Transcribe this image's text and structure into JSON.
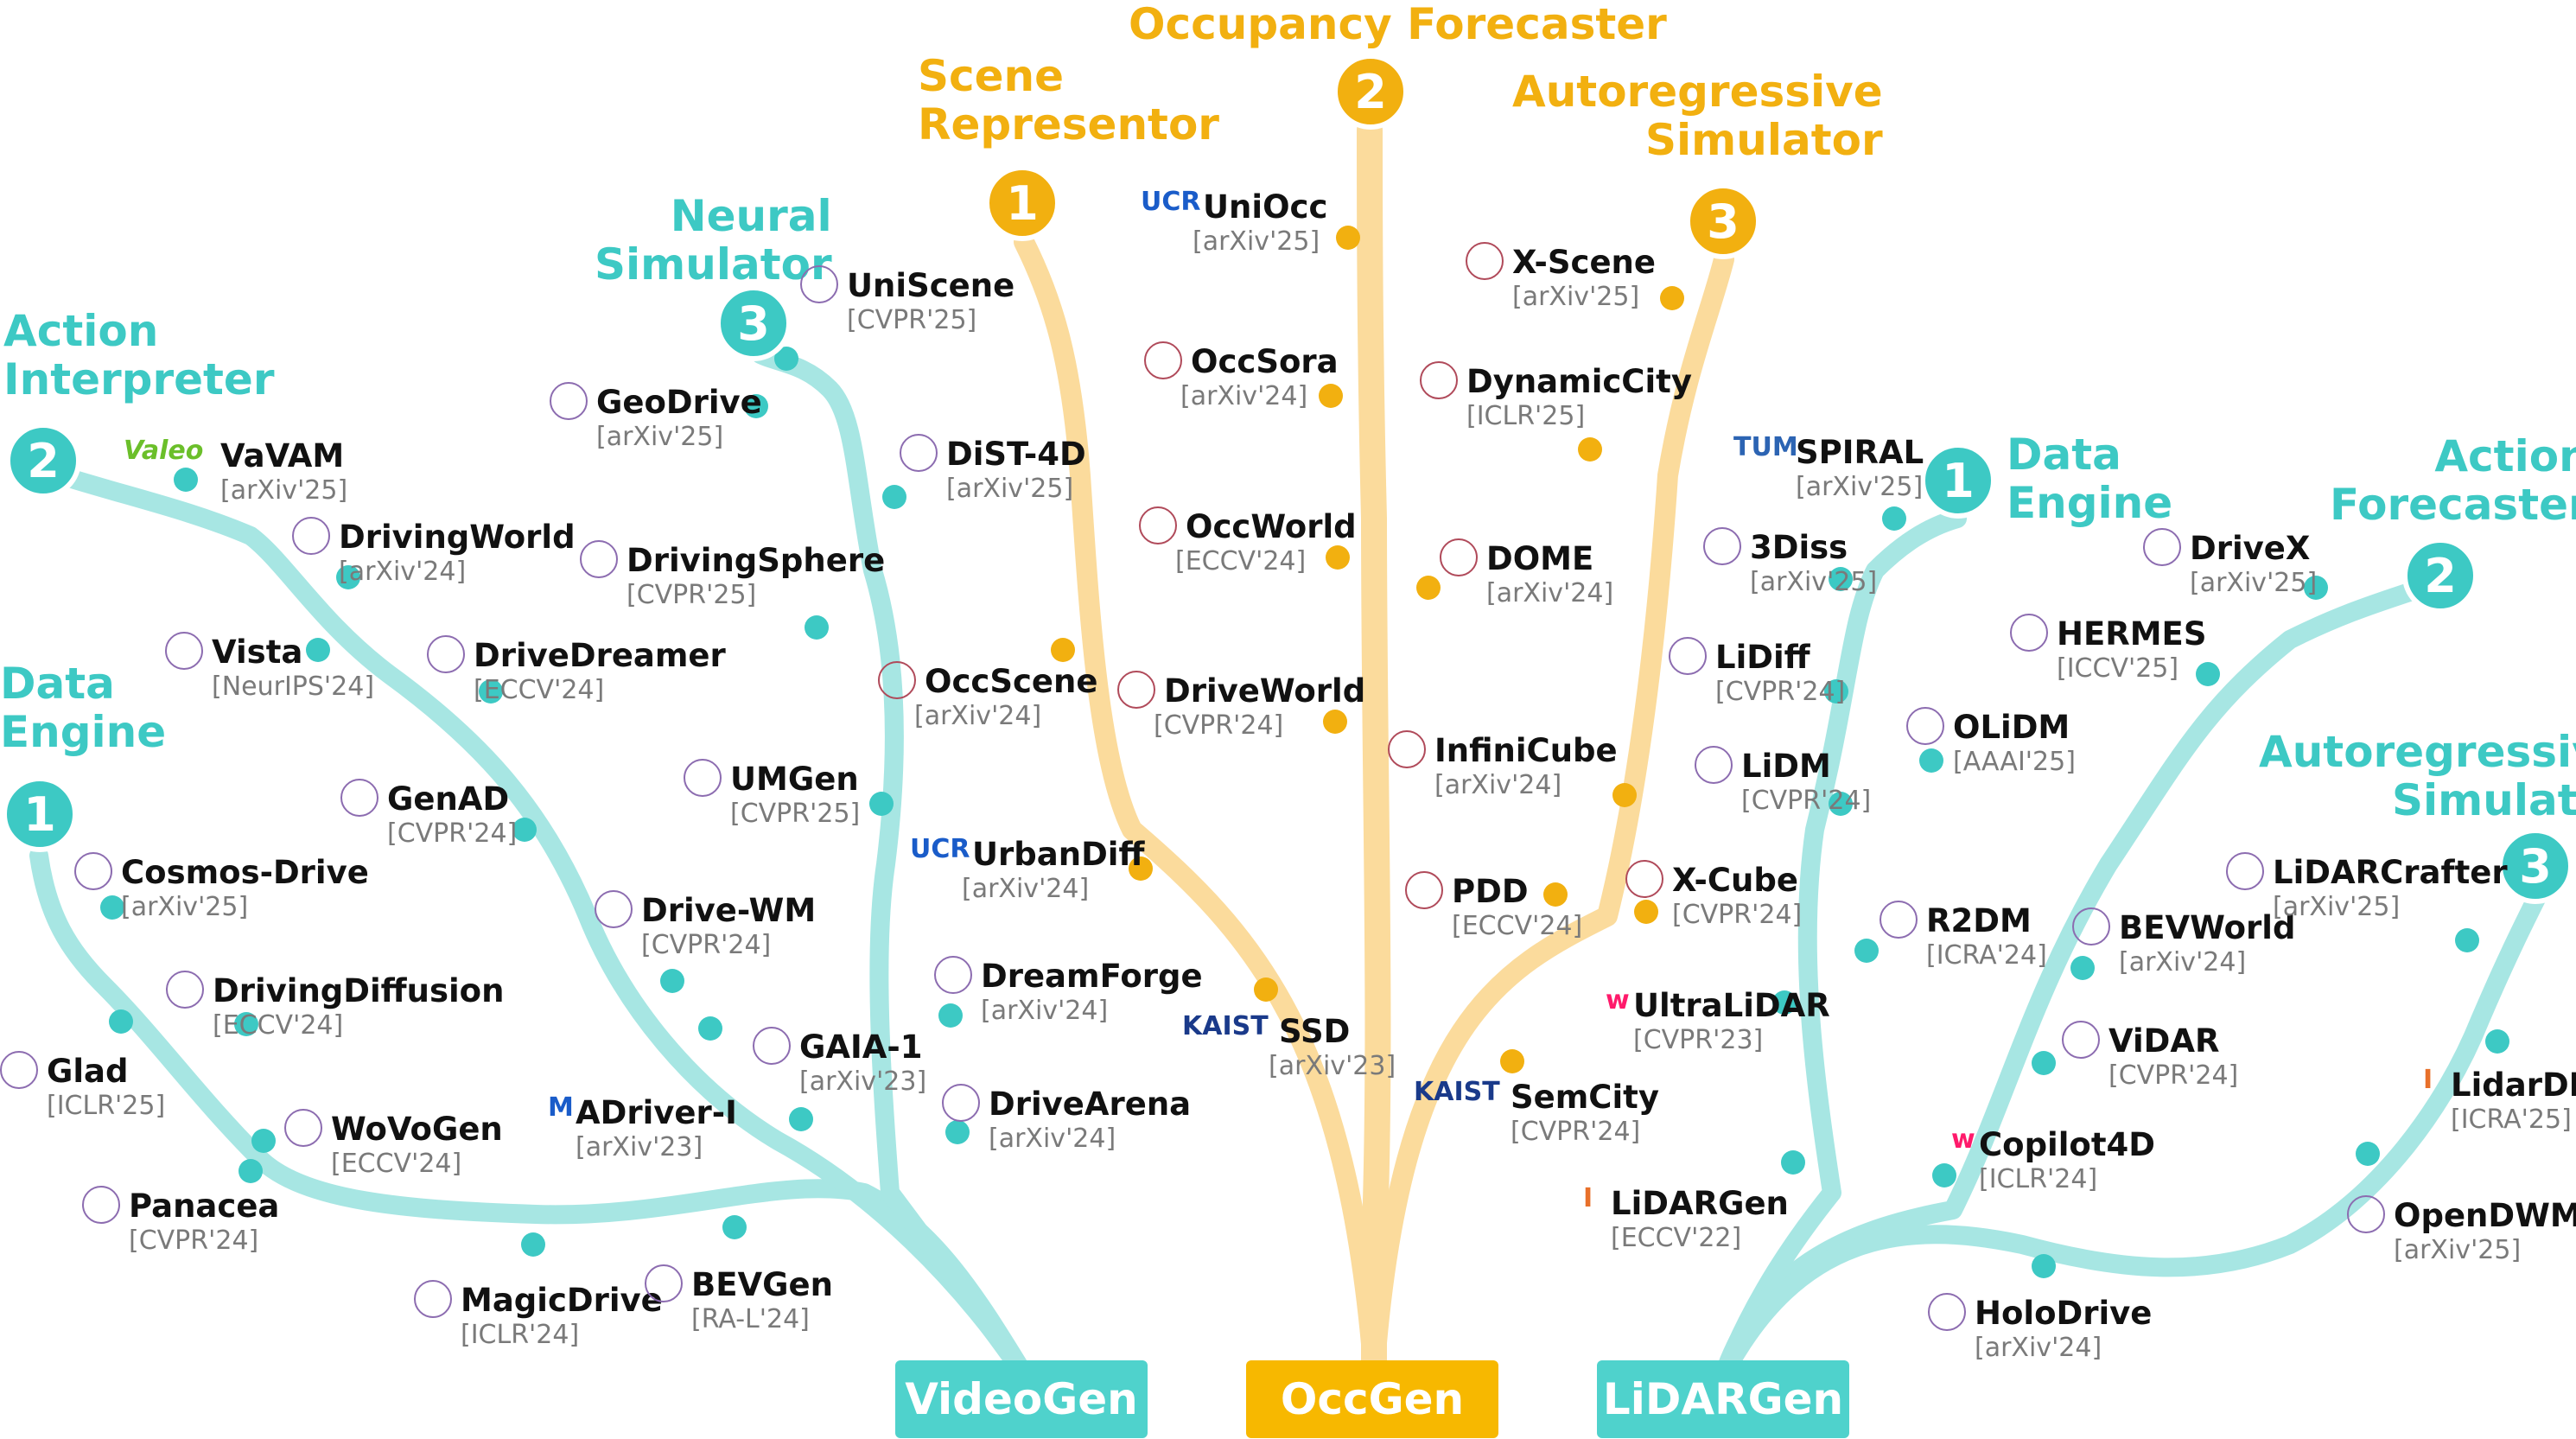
{
  "colors": {
    "teal": "#3dc9c4",
    "teal_branch": "#a7e6e3",
    "gold": "#f2b010",
    "gold_branch": "#fbdb9c"
  },
  "roots": [
    {
      "id": "videogen",
      "label": "VideoGen"
    },
    {
      "id": "occgen",
      "label": "OccGen"
    },
    {
      "id": "lidargen",
      "label": "LiDARGen"
    }
  ],
  "categories": {
    "video_data_engine": {
      "title_line1": "Data",
      "title_line2": "Engine",
      "badge": "1"
    },
    "video_action_interpreter": {
      "title_line1": "Action",
      "title_line2": "Interpreter",
      "badge": "2"
    },
    "video_neural_simulator": {
      "title_line1": "Neural",
      "title_line2": "Simulator",
      "badge": "3"
    },
    "occ_scene_representor": {
      "title_line1": "Scene",
      "title_line2": "Representor",
      "badge": "1"
    },
    "occ_forecaster": {
      "title_line1": "Occupancy Forecaster",
      "badge": "2"
    },
    "occ_autoregressive": {
      "title_line1": "Autoregressive",
      "title_line2": "Simulator",
      "badge": "3"
    },
    "lidar_data_engine": {
      "title_line1": "Data",
      "title_line2": "Engine",
      "badge": "1"
    },
    "lidar_action_forecaster": {
      "title_line1": "Action",
      "title_line2": "Forecaster",
      "badge": "2"
    },
    "lidar_autoregressive": {
      "title_line1": "Autoregressive",
      "title_line2": "Simulator",
      "badge": "3"
    }
  },
  "papers": [
    {
      "id": "cosmos-drive",
      "name": "Cosmos-Drive",
      "venue": "[arXiv'25]",
      "logo": "nvidia-logo"
    },
    {
      "id": "glad",
      "name": "Glad",
      "venue": "[ICLR'25]",
      "logo": "university-seal"
    },
    {
      "id": "drivingdiffusion",
      "name": "DrivingDiffusion",
      "venue": "[ECCV'24]",
      "logo": "baidu-logo"
    },
    {
      "id": "wovogen",
      "name": "WoVoGen",
      "venue": "[ECCV'24]",
      "logo": "university-seal"
    },
    {
      "id": "panacea",
      "name": "Panacea",
      "venue": "[CVPR'24]",
      "logo": "university-seal"
    },
    {
      "id": "magicdrive",
      "name": "MagicDrive",
      "venue": "[ICLR'24]",
      "logo": "university-crest"
    },
    {
      "id": "bevgen",
      "name": "BEVGen",
      "venue": "[RA-L'24]",
      "logo": "university-seal"
    },
    {
      "id": "vavam",
      "name": "VaVAM",
      "venue": "[arXiv'25]",
      "logo": "valeo-logo",
      "logo_text": "Valeo"
    },
    {
      "id": "drivingworld",
      "name": "DrivingWorld",
      "venue": "[arXiv'24]",
      "logo": "university-crest"
    },
    {
      "id": "vista",
      "name": "Vista",
      "venue": "[NeurIPS'24]",
      "logo": "opendrivelab-logo"
    },
    {
      "id": "drivedreamer",
      "name": "DriveDreamer",
      "venue": "[ECCV'24]",
      "logo": "gigaai-logo"
    },
    {
      "id": "genad",
      "name": "GenAD",
      "venue": "[CVPR'24]",
      "logo": "opendrivelab-logo"
    },
    {
      "id": "unisene",
      "name": "UniScene",
      "venue": "[CVPR'25]",
      "logo": "university-seal"
    },
    {
      "id": "geodrive",
      "name": "GeoDrive",
      "venue": "[arXiv'25]",
      "logo": "pku-logo"
    },
    {
      "id": "dist-4d",
      "name": "DiST-4D",
      "venue": "[arXiv'25]",
      "logo": "university-seal"
    },
    {
      "id": "drivingsphere",
      "name": "DrivingSphere",
      "venue": "[CVPR'25]",
      "logo": "university-crest"
    },
    {
      "id": "umgen",
      "name": "UMGen",
      "venue": "[CVPR'25]",
      "logo": "university-seal"
    },
    {
      "id": "drive-wm",
      "name": "Drive-WM",
      "venue": "[CVPR'24]",
      "logo": "casia-logo"
    },
    {
      "id": "adriver-i",
      "name": "ADriver-I",
      "venue": "[arXiv'23]",
      "logo": "megvii-logo",
      "logo_text": "M"
    },
    {
      "id": "gaia-1",
      "name": "GAIA-1",
      "venue": "[arXiv'23]",
      "logo": "wayve-logo"
    },
    {
      "id": "dreamforge",
      "name": "DreamForge",
      "venue": "[arXiv'24]",
      "logo": "university-seal"
    },
    {
      "id": "drivearena",
      "name": "DriveArena",
      "venue": "[arXiv'24]",
      "logo": "pjlab-logo"
    },
    {
      "id": "uniocc",
      "name": "UniOcc",
      "venue": "[arXiv'25]",
      "logo": "ucr-logo",
      "logo_text": "UCR"
    },
    {
      "id": "occsora",
      "name": "OccSora",
      "venue": "[arXiv'24]",
      "logo": "university-seal"
    },
    {
      "id": "occworld",
      "name": "OccWorld",
      "venue": "[ECCV'24]",
      "logo": "tsinghua-logo"
    },
    {
      "id": "dome",
      "name": "DOME",
      "venue": "[arXiv'24]",
      "logo": "diamond-logo"
    },
    {
      "id": "driveworld",
      "name": "DriveWorld",
      "venue": "[CVPR'24]",
      "logo": "pku-logo"
    },
    {
      "id": "occscene",
      "name": "OccScene",
      "venue": "[arXiv'24]",
      "logo": "university-seal"
    },
    {
      "id": "urbandiff",
      "name": "UrbanDiff",
      "venue": "[arXiv'24]",
      "logo": "ucr-logo",
      "logo_text": "UCR"
    },
    {
      "id": "ssd",
      "name": "SSD",
      "venue": "[arXiv'23]",
      "logo": "kaist-logo",
      "logo_text": "KAIST"
    },
    {
      "id": "x-scene",
      "name": "X-Scene",
      "venue": "[arXiv'25]",
      "logo": "university-seal"
    },
    {
      "id": "dynamiccity",
      "name": "DynamicCity",
      "venue": "[ICLR'25]",
      "logo": "university-banner"
    },
    {
      "id": "infinicube",
      "name": "InfiniCube",
      "venue": "[arXiv'24]",
      "logo": "nvidia-logo"
    },
    {
      "id": "pdd",
      "name": "PDD",
      "venue": "[ECCV'24]",
      "logo": "university-crest"
    },
    {
      "id": "x-cube",
      "name": "X-Cube",
      "venue": "[CVPR'24]",
      "logo": "nvidia-logo"
    },
    {
      "id": "semcity",
      "name": "SemCity",
      "venue": "[CVPR'24]",
      "logo": "kaist-logo",
      "logo_text": "KAIST"
    },
    {
      "id": "spiral",
      "name": "SPIRAL",
      "venue": "[arXiv'25]",
      "logo": "tum-logo",
      "logo_text": "TUM"
    },
    {
      "id": "3diss",
      "name": "3Diss",
      "venue": "[arXiv'25]",
      "logo": "uni-bonn-logo"
    },
    {
      "id": "lidiff",
      "name": "LiDiff",
      "venue": "[CVPR'24]",
      "logo": "uni-bonn-logo"
    },
    {
      "id": "lidm",
      "name": "LiDM",
      "venue": "[CVPR'24]",
      "logo": "cmu-logo"
    },
    {
      "id": "r2dm",
      "name": "R2DM",
      "venue": "[ICRA'24]",
      "logo": "university-seal"
    },
    {
      "id": "ultralidar",
      "name": "UltraLiDAR",
      "venue": "[CVPR'23]",
      "logo": "waabi-logo",
      "logo_text": "w"
    },
    {
      "id": "lidargen",
      "name": "LiDARGen",
      "venue": "[ECCV'22]",
      "logo": "uiuc-logo",
      "logo_text": "I"
    },
    {
      "id": "drivex",
      "name": "DriveX",
      "venue": "[arXiv'25]",
      "logo": "university-crest"
    },
    {
      "id": "hermes",
      "name": "HERMES",
      "venue": "[ICCV'25]",
      "logo": "university-seal"
    },
    {
      "id": "olidm",
      "name": "OLiDM",
      "venue": "[AAAI'25]",
      "logo": "university-crest"
    },
    {
      "id": "bevworld",
      "name": "BEVWorld",
      "venue": "[arXiv'24]",
      "logo": "baidu-logo"
    },
    {
      "id": "vidar",
      "name": "ViDAR",
      "venue": "[CVPR'24]",
      "logo": "opendrivelab-logo"
    },
    {
      "id": "copilot4d",
      "name": "Copilot4D",
      "venue": "[ICLR'24]",
      "logo": "waabi-logo",
      "logo_text": "w"
    },
    {
      "id": "holodrive",
      "name": "HoloDrive",
      "venue": "[arXiv'24]",
      "logo": "infinity-logo"
    },
    {
      "id": "lidarcrafter",
      "name": "LiDARCrafter",
      "venue": "[arXiv'25]",
      "logo": "university-crest"
    },
    {
      "id": "lidardm",
      "name": "LidarDM",
      "venue": "[ICRA'25]",
      "logo": "uiuc-logo",
      "logo_text": "I"
    },
    {
      "id": "opendwm",
      "name": "OpenDWM",
      "venue": "[arXiv'25]",
      "logo": "infinity-logo"
    }
  ]
}
